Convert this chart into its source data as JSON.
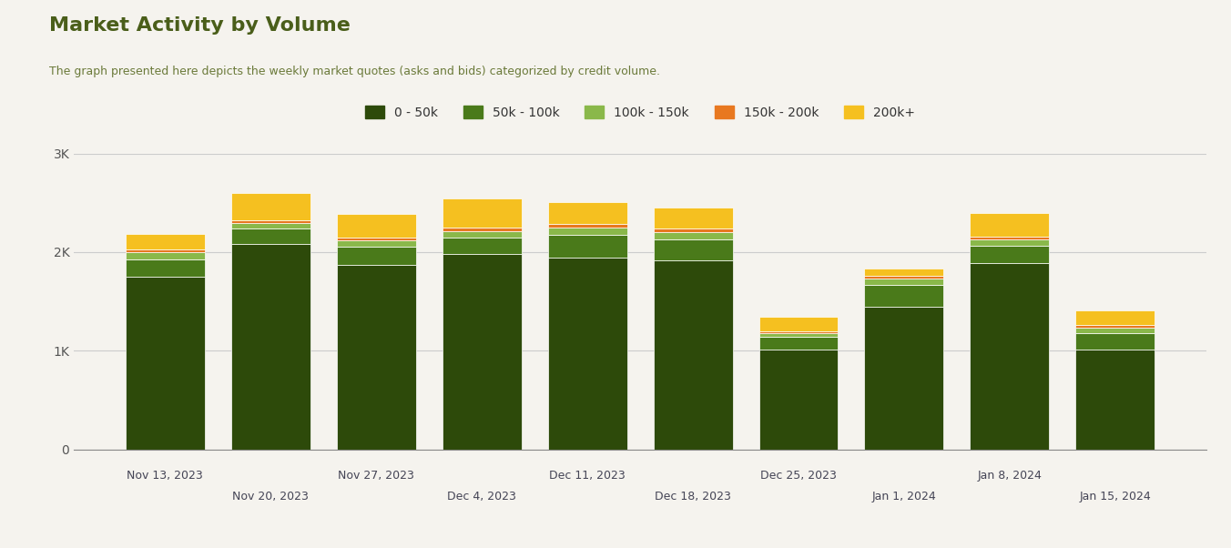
{
  "title": "Market Activity by Volume",
  "subtitle": "The graph presented here depicts the weekly market quotes (asks and bids) categorized by credit volume.",
  "title_color": "#4a5e1a",
  "subtitle_color": "#6b7a3a",
  "background_color": "#f5f3ee",
  "categories": [
    "Nov 13, 2023",
    "Nov 20, 2023",
    "Nov 27, 2023",
    "Dec 4, 2023",
    "Dec 11, 2023",
    "Dec 18, 2023",
    "Dec 25, 2023",
    "Jan 1, 2024",
    "Jan 8, 2024",
    "Jan 15, 2024"
  ],
  "legend_labels": [
    "0 - 50k",
    "50k - 100k",
    "100k - 150k",
    "150k - 200k",
    "200k+"
  ],
  "colors": [
    "#2d4a0a",
    "#4a7a1a",
    "#8ab84a",
    "#e87820",
    "#f5c020"
  ],
  "segment_data": {
    "0-50k": [
      1750,
      2080,
      1870,
      1980,
      1940,
      1920,
      1010,
      1450,
      1890,
      1010
    ],
    "50k-100k": [
      180,
      155,
      185,
      165,
      230,
      210,
      130,
      220,
      175,
      170
    ],
    "100k-150k": [
      65,
      55,
      60,
      70,
      80,
      75,
      40,
      60,
      60,
      55
    ],
    "150k-200k": [
      30,
      30,
      30,
      35,
      35,
      30,
      20,
      25,
      30,
      25
    ],
    "200k+": [
      155,
      280,
      245,
      290,
      225,
      215,
      145,
      80,
      245,
      145
    ]
  },
  "ylim": [
    0,
    3000
  ],
  "yticks": [
    0,
    1000,
    2000,
    3000
  ],
  "ytick_labels": [
    "0",
    "1K",
    "2K",
    "3K"
  ],
  "bar_width": 0.75,
  "grid_color": "#cccccc"
}
